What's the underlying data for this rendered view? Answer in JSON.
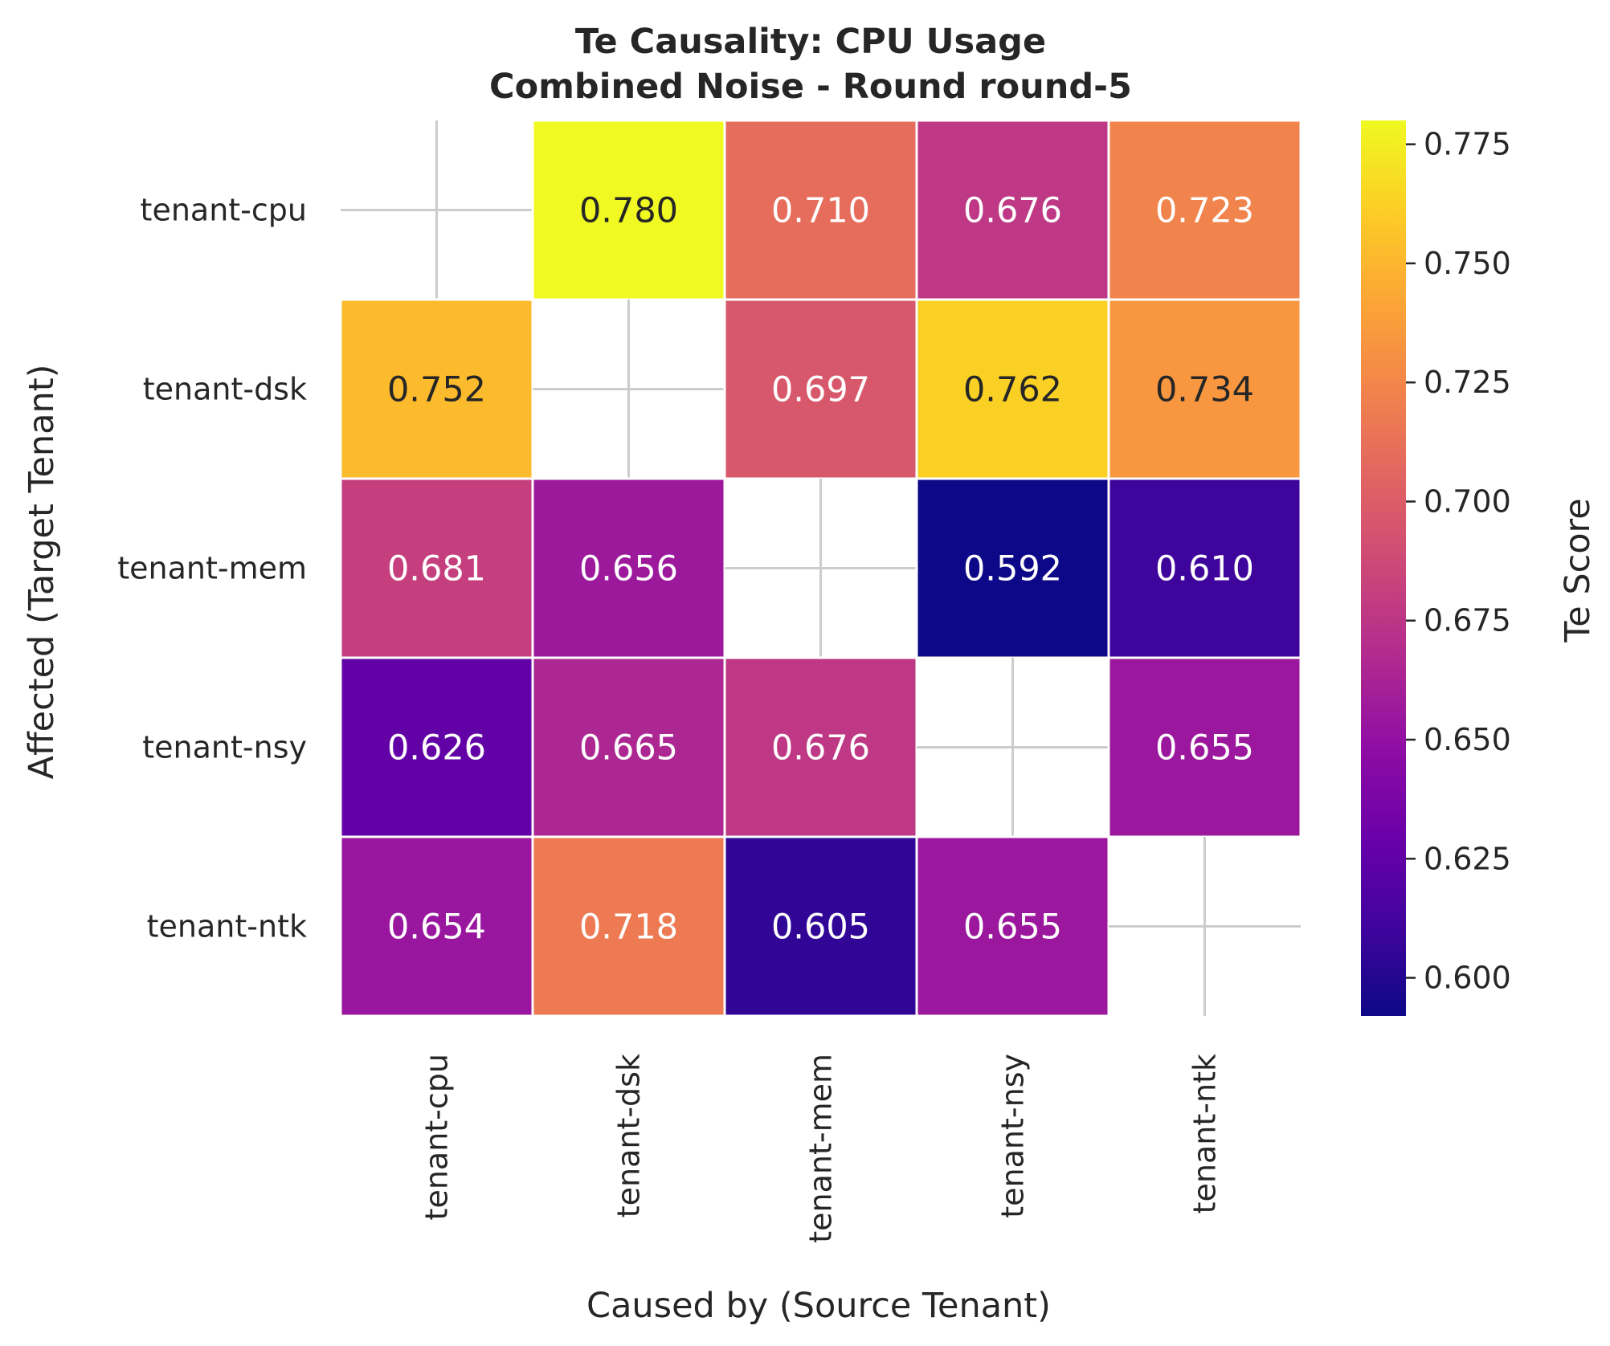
{
  "chart_data": {
    "type": "heatmap",
    "title": [
      "Te Causality: CPU Usage",
      "Combined Noise - Round round-5"
    ],
    "xlabel": "Caused by (Source Tenant)",
    "ylabel": "Affected (Target Tenant)",
    "x_categories": [
      "tenant-cpu",
      "tenant-dsk",
      "tenant-mem",
      "tenant-nsy",
      "tenant-ntk"
    ],
    "y_categories": [
      "tenant-cpu",
      "tenant-dsk",
      "tenant-mem",
      "tenant-nsy",
      "tenant-ntk"
    ],
    "values": [
      [
        null,
        0.78,
        0.71,
        0.676,
        0.723
      ],
      [
        0.752,
        null,
        0.697,
        0.762,
        0.734
      ],
      [
        0.681,
        0.656,
        null,
        0.592,
        0.61
      ],
      [
        0.626,
        0.665,
        0.676,
        null,
        0.655
      ],
      [
        0.654,
        0.718,
        0.605,
        0.655,
        null
      ]
    ],
    "value_format": "0.000",
    "colormap": "plasma",
    "vmin": 0.592,
    "vmax": 0.78,
    "colorbar": {
      "label": "Te Score",
      "ticks": [
        "0.600",
        "0.625",
        "0.650",
        "0.675",
        "0.700",
        "0.725",
        "0.750",
        "0.775"
      ],
      "placement": "right"
    },
    "diagonal": "masked",
    "grid": true,
    "legend": "none"
  }
}
